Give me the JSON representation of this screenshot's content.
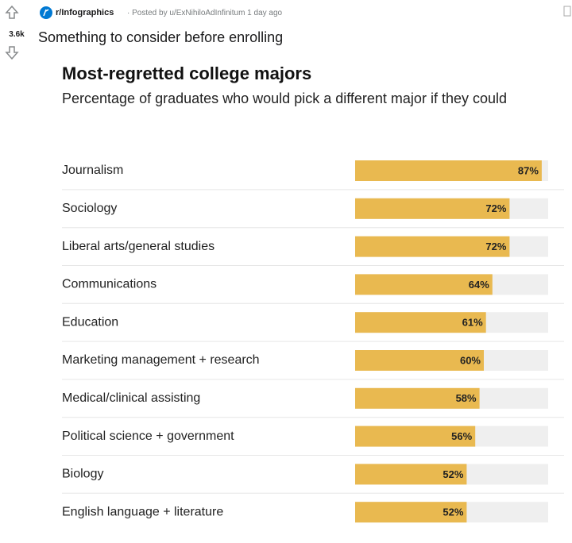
{
  "post": {
    "score": "3.6k",
    "subreddit": "r/Infographics",
    "meta": "· Posted by u/ExNihiloAdInfinitum 1 day ago",
    "title": "Something to consider before enrolling"
  },
  "chart_data": {
    "type": "bar",
    "orientation": "horizontal",
    "title": "Most-regretted college majors",
    "subtitle": "Percentage of graduates who would pick a different major if they could",
    "categories": [
      "Journalism",
      "Sociology",
      "Liberal arts/general studies",
      "Communications",
      "Education",
      "Marketing management + research",
      "Medical/clinical assisting",
      "Political science + government",
      "Biology",
      "English language + literature"
    ],
    "values": [
      87,
      72,
      72,
      64,
      61,
      60,
      58,
      56,
      52,
      52
    ],
    "value_labels": [
      "87%",
      "72%",
      "72%",
      "64%",
      "61%",
      "60%",
      "58%",
      "56%",
      "52%",
      "52%"
    ],
    "color": "#e9b950",
    "xlim": [
      0,
      90
    ]
  }
}
